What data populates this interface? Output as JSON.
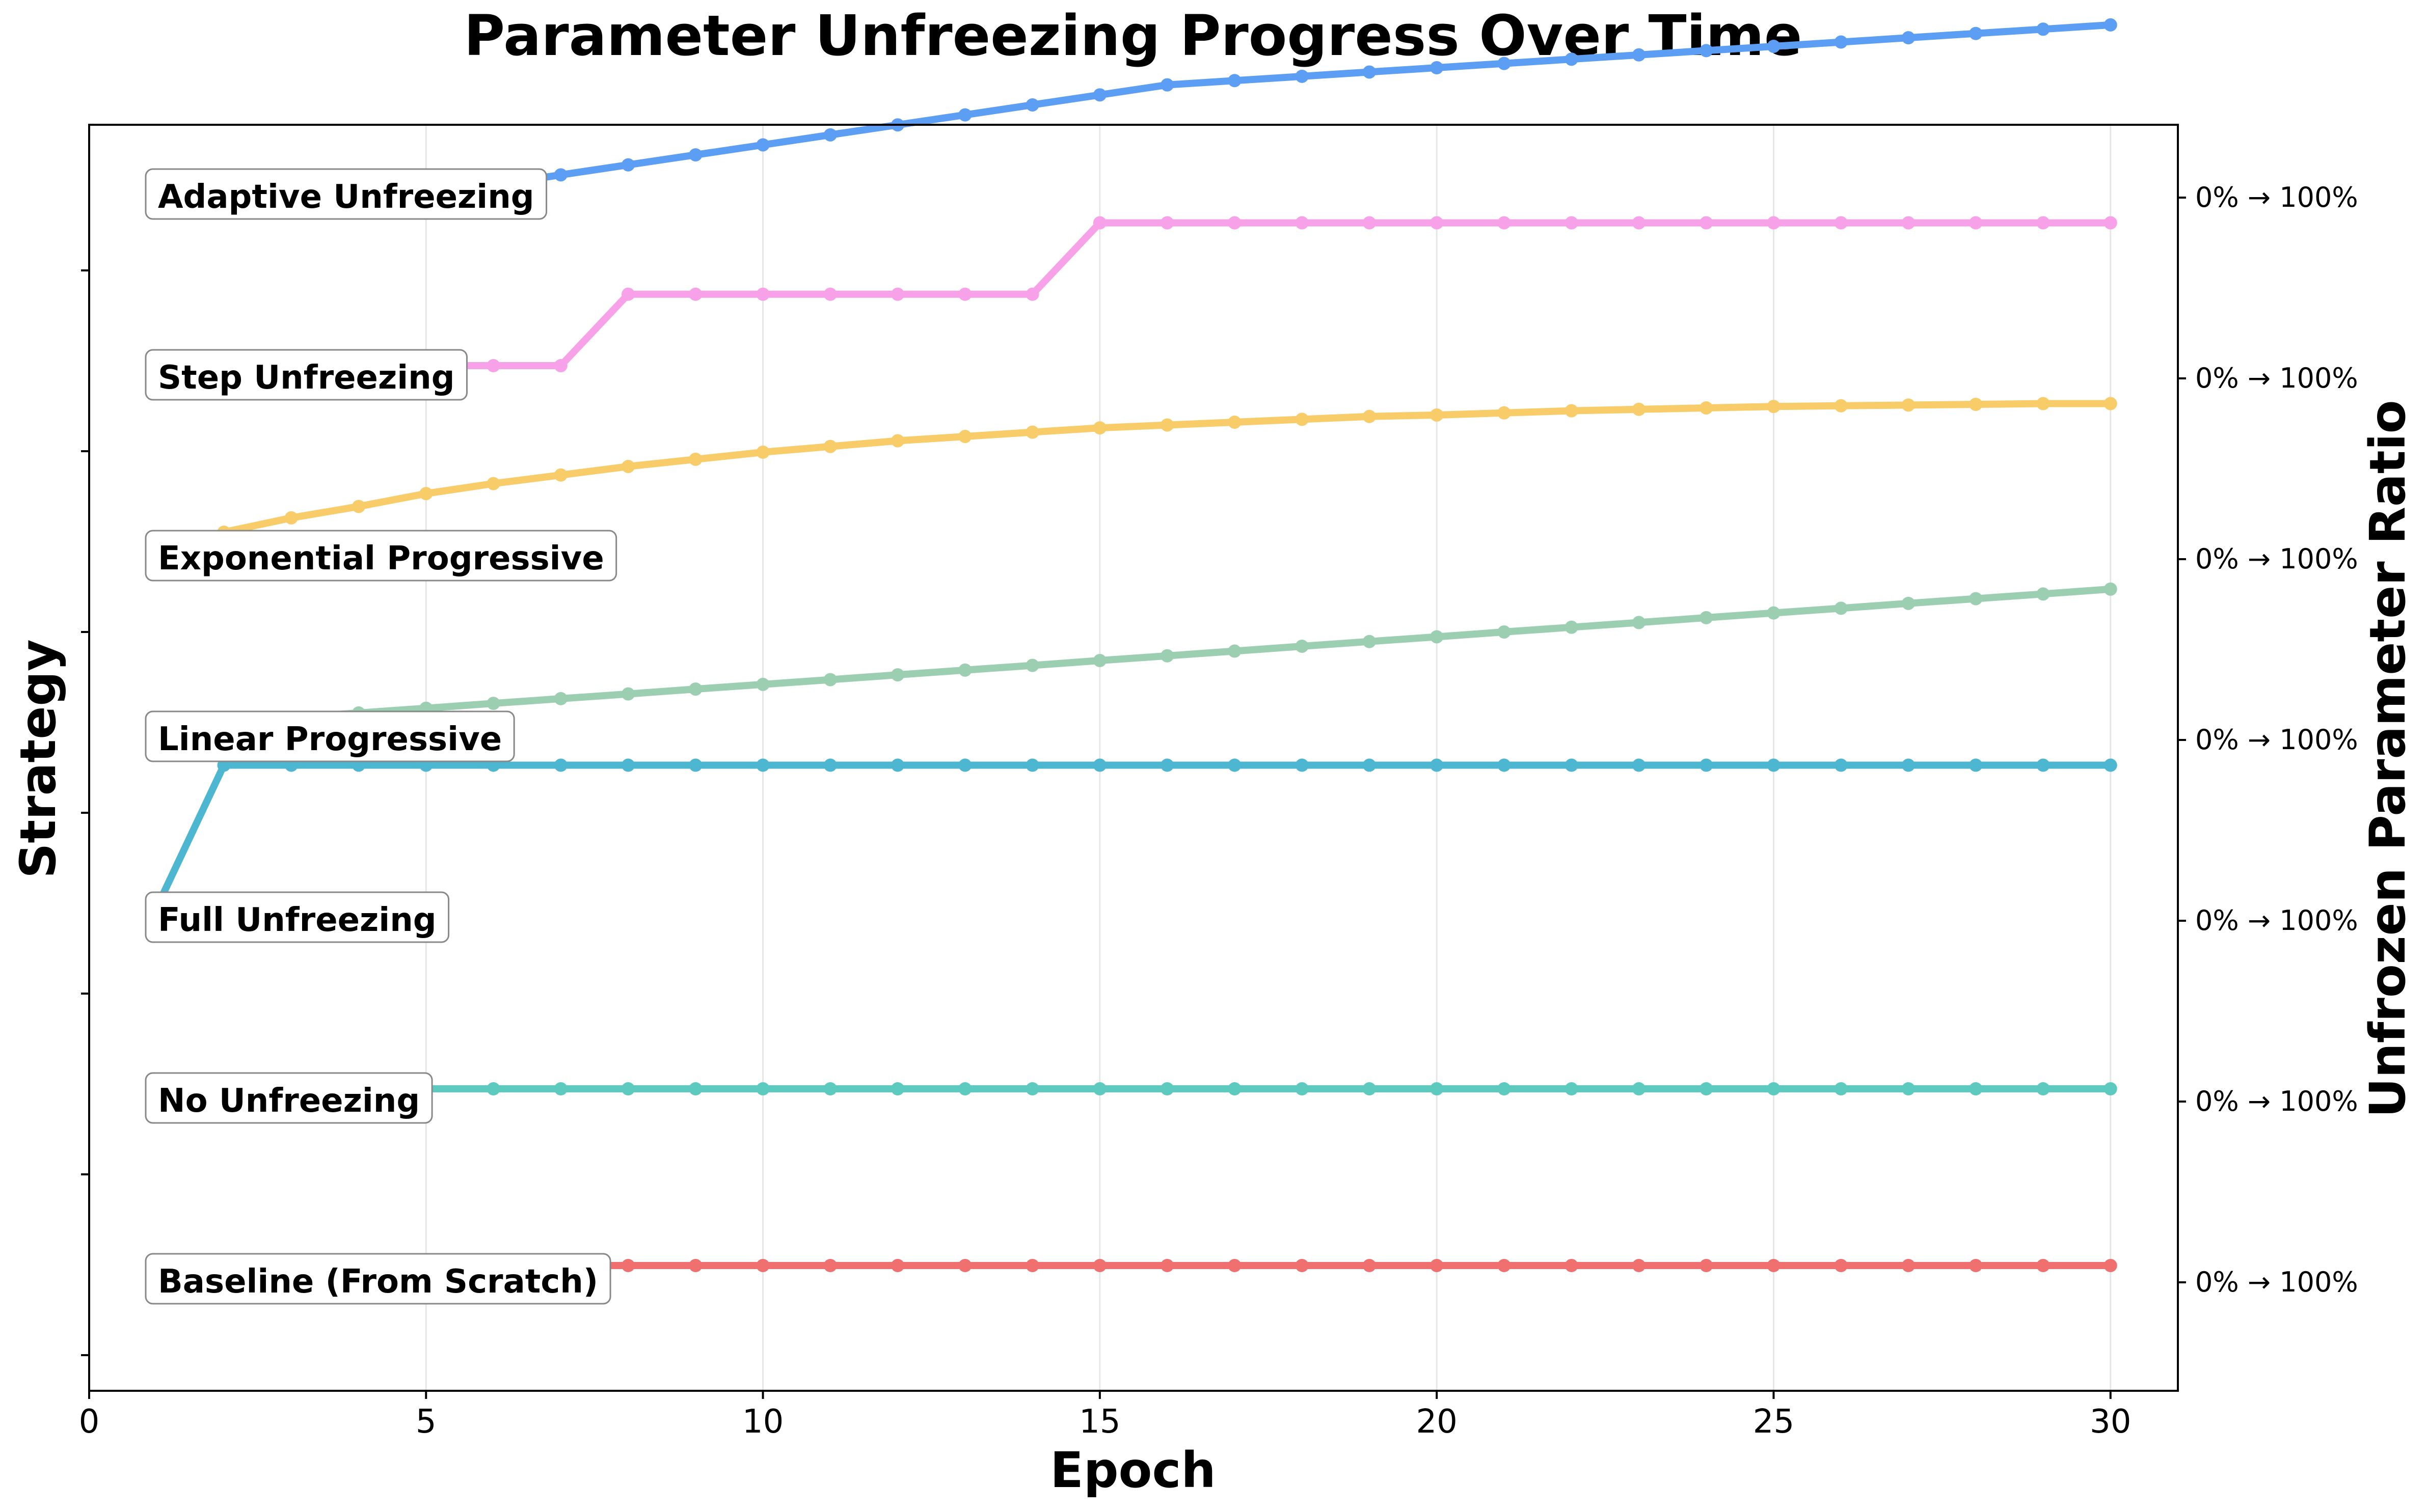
{
  "chart_data": {
    "type": "line",
    "title": "Parameter Unfreezing Progress Over Time",
    "xlabel": "Epoch",
    "ylabel_left": "Strategy",
    "ylabel_right": "Unfrozen Parameter Ratio",
    "xlim": [
      0,
      31
    ],
    "x_ticks": [
      0,
      5,
      10,
      15,
      20,
      25,
      30
    ],
    "grid_x": true,
    "x": [
      1,
      2,
      3,
      4,
      5,
      6,
      7,
      8,
      9,
      10,
      11,
      12,
      13,
      14,
      15,
      16,
      17,
      18,
      19,
      20,
      21,
      22,
      23,
      24,
      25,
      26,
      27,
      28,
      29,
      30
    ],
    "right_tick_label": "0% → 100%",
    "series": [
      {
        "name": "Baseline (From Scratch)",
        "color": "#F07070",
        "values": [
          1,
          1,
          1,
          1,
          1,
          1,
          1,
          1,
          1,
          1,
          1,
          1,
          1,
          1,
          1,
          1,
          1,
          1,
          1,
          1,
          1,
          1,
          1,
          1,
          1,
          1,
          1,
          1,
          1,
          1
        ]
      },
      {
        "name": "No Unfreezing",
        "color": "#5CCABF",
        "values": [
          0,
          0,
          0,
          0,
          0,
          0,
          0,
          0,
          0,
          0,
          0,
          0,
          0,
          0,
          0,
          0,
          0,
          0,
          0,
          0,
          0,
          0,
          0,
          0,
          0,
          0,
          0,
          0,
          0,
          0
        ]
      },
      {
        "name": "Full Unfreezing",
        "color": "#4DB6D0",
        "values": [
          0,
          1,
          1,
          1,
          1,
          1,
          1,
          1,
          1,
          1,
          1,
          1,
          1,
          1,
          1,
          1,
          1,
          1,
          1,
          1,
          1,
          1,
          1,
          1,
          1,
          1,
          1,
          1,
          1,
          1
        ]
      },
      {
        "name": "Linear Progressive",
        "color": "#9CCFB2",
        "values": [
          0,
          0.033,
          0.067,
          0.1,
          0.133,
          0.167,
          0.2,
          0.233,
          0.267,
          0.3,
          0.333,
          0.367,
          0.4,
          0.433,
          0.467,
          0.5,
          0.533,
          0.567,
          0.6,
          0.633,
          0.667,
          0.7,
          0.733,
          0.767,
          0.8,
          0.833,
          0.867,
          0.9,
          0.933,
          0.967
        ]
      },
      {
        "name": "Exponential Progressive",
        "color": "#F8CC68",
        "values": [
          0,
          0.1,
          0.2,
          0.28,
          0.37,
          0.44,
          0.5,
          0.56,
          0.61,
          0.66,
          0.7,
          0.74,
          0.77,
          0.8,
          0.83,
          0.85,
          0.87,
          0.89,
          0.91,
          0.92,
          0.935,
          0.95,
          0.96,
          0.97,
          0.98,
          0.985,
          0.99,
          0.995,
          1.0,
          1.0
        ]
      },
      {
        "name": "Step Unfreezing",
        "color": "#F7A1E8",
        "values": [
          0,
          0,
          0,
          0,
          0,
          0,
          0,
          0.5,
          0.5,
          0.5,
          0.5,
          0.5,
          0.5,
          0.5,
          1,
          1,
          1,
          1,
          1,
          1,
          1,
          1,
          1,
          1,
          1,
          1,
          1,
          1,
          1,
          1
        ]
      },
      {
        "name": "Adaptive Unfreezing",
        "color": "#5B9EF4",
        "values": [
          0,
          0,
          0,
          0,
          0,
          0,
          0.07,
          0.14,
          0.21,
          0.28,
          0.35,
          0.42,
          0.49,
          0.56,
          0.63,
          0.7,
          0.73,
          0.76,
          0.79,
          0.82,
          0.85,
          0.88,
          0.91,
          0.94,
          0.97,
          1.0,
          1.03,
          1.06,
          1.09,
          1.12
        ]
      }
    ]
  }
}
